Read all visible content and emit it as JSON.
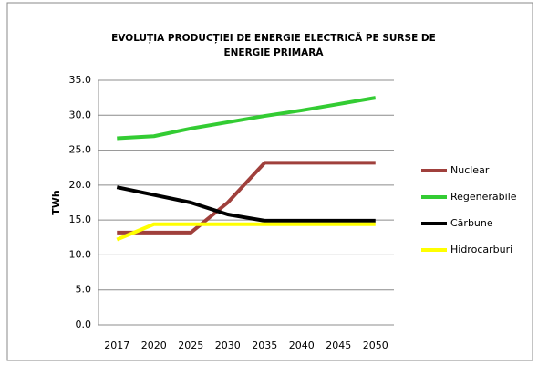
{
  "chart_data": {
    "type": "line",
    "title_lines": [
      "EVOLUȚIA PRODUCȚIEI DE ENERGIE ELECTRICĂ PE SURSE DE",
      "ENERGIE PRIMARĂ"
    ],
    "y_label": "TWh",
    "categories": [
      "2017",
      "2020",
      "2025",
      "2030",
      "2035",
      "2040",
      "2045",
      "2050"
    ],
    "series": [
      {
        "name": "Nuclear",
        "color": "#a0403c",
        "values": [
          13.2,
          13.2,
          13.2,
          17.5,
          23.2,
          23.2,
          23.2,
          23.2
        ]
      },
      {
        "name": "Regenerabile",
        "color": "#33cc33",
        "values": [
          26.7,
          27.0,
          28.1,
          29.0,
          29.9,
          30.7,
          31.6,
          32.5
        ]
      },
      {
        "name": "Cărbune",
        "color": "#000000",
        "values": [
          19.7,
          18.6,
          17.5,
          15.8,
          14.9,
          14.9,
          14.9,
          14.9
        ]
      },
      {
        "name": "Hidrocarburi",
        "color": "#ffff00",
        "values": [
          12.2,
          14.4,
          14.4,
          14.4,
          14.4,
          14.4,
          14.4,
          14.4
        ]
      }
    ],
    "ylim": [
      0,
      35
    ],
    "yticks": [
      {
        "value": 0,
        "label": "0.0"
      },
      {
        "value": 5,
        "label": "5.0"
      },
      {
        "value": 10,
        "label": "10.0"
      },
      {
        "value": 15,
        "label": "15.0"
      },
      {
        "value": 20,
        "label": "20.0"
      },
      {
        "value": 25,
        "label": "25.0"
      },
      {
        "value": 30,
        "label": "30.0"
      },
      {
        "value": 35,
        "label": "35.0"
      }
    ],
    "grid": true,
    "legend": "right"
  }
}
